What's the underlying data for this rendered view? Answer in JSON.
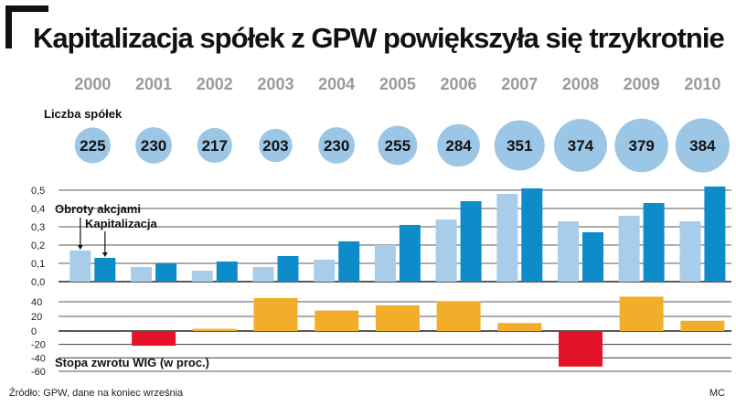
{
  "title": "Kapitalizacja spółek z GPW powiększyła się trzykrotnie",
  "source": "Źródło: GPW, dane na koniec września",
  "credit": "MC",
  "colors": {
    "circle": "#9cc6e6",
    "turnover": "#a8cdea",
    "capitalization": "#0e8bc9",
    "wig_positive": "#f2ae2a",
    "wig_negative": "#e3142a",
    "gridline": "#222222",
    "year_text": "#9a9a9a"
  },
  "chart_data": [
    {
      "type": "table",
      "label": "Liczba spółek",
      "categories": [
        "2000",
        "2001",
        "2002",
        "2003",
        "2004",
        "2005",
        "2006",
        "2007",
        "2008",
        "2009",
        "2010"
      ],
      "values": [
        225,
        230,
        217,
        203,
        230,
        255,
        284,
        351,
        374,
        379,
        384
      ]
    },
    {
      "type": "bar",
      "categories": [
        "2000",
        "2001",
        "2002",
        "2003",
        "2004",
        "2005",
        "2006",
        "2007",
        "2008",
        "2009",
        "2010"
      ],
      "series": [
        {
          "name": "Obroty akcjami",
          "values": [
            0.17,
            0.08,
            0.06,
            0.08,
            0.12,
            0.2,
            0.34,
            0.48,
            0.33,
            0.36,
            0.33
          ]
        },
        {
          "name": "Kapitalizacja",
          "values": [
            0.13,
            0.1,
            0.11,
            0.14,
            0.22,
            0.31,
            0.44,
            0.51,
            0.27,
            0.43,
            0.52
          ]
        }
      ],
      "yticks": [
        "0,5",
        "0,4",
        "0,3",
        "0,2",
        "0,1",
        "0,0"
      ],
      "ylim": [
        0,
        0.5
      ],
      "grid": true,
      "legend": "callouts"
    },
    {
      "type": "bar",
      "label": "Stopa zwrotu WIG (w proc.)",
      "categories": [
        "2000",
        "2001",
        "2002",
        "2003",
        "2004",
        "2005",
        "2006",
        "2007",
        "2008",
        "2009",
        "2010"
      ],
      "values": [
        -1,
        -22,
        3,
        45,
        28,
        35,
        41,
        11,
        -53,
        47,
        14
      ],
      "yticks": [
        "40",
        "20",
        "0",
        "-20",
        "-40",
        "-60"
      ],
      "ylim": [
        -60,
        50
      ],
      "grid": true
    }
  ]
}
